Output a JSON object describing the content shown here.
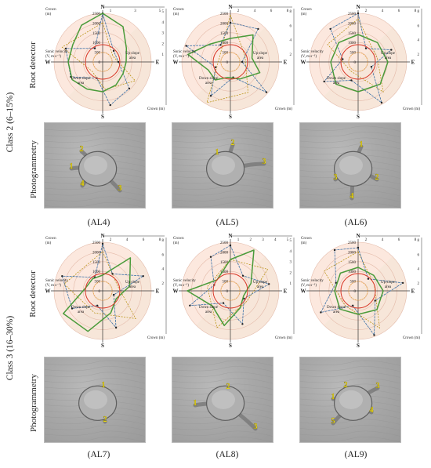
{
  "row_labels": {
    "root_detector": "Root detector",
    "photogrammetry": "Photogrammetry",
    "class2": "Class 2 (6–15%)",
    "class3": "Class 3 (16–30%)"
  },
  "chart_labels": {
    "crown_label": "Crown",
    "crown_unit": "(m)",
    "crown_axis": "Crown (m)",
    "sonic_line1": "Sonic velocity",
    "sonic_line2": "(V, m s⁻¹)",
    "down_line1": "Down slope",
    "down_line2": "area",
    "up_line1": "Up slope",
    "up_line2": "area",
    "north": "N",
    "south": "S",
    "east": "E",
    "west": "W"
  },
  "radial_ticks": [
    "2500",
    "2000",
    "1500",
    "1000",
    "500",
    "0"
  ],
  "panels": [
    {
      "id": "AL4",
      "caption": "(AL4)",
      "crown_ticks": [
        "1",
        "3",
        "5"
      ],
      "right_ticks": [
        "5",
        "4",
        "3",
        "2",
        "1"
      ],
      "root_labels": [
        "1",
        "2",
        "3",
        "4"
      ]
    },
    {
      "id": "AL5",
      "caption": "(AL5)",
      "crown_ticks": [
        "2",
        "4",
        "6",
        "8"
      ],
      "right_ticks": [
        "8",
        "6",
        "4",
        "2"
      ],
      "root_labels": [
        "1",
        "2",
        "3"
      ]
    },
    {
      "id": "AL6",
      "caption": "(AL6)",
      "crown_ticks": [
        "2",
        "4",
        "6",
        "8"
      ],
      "right_ticks": [
        "8",
        "6",
        "4",
        "2"
      ],
      "root_labels": [
        "1",
        "2",
        "3",
        "4"
      ]
    },
    {
      "id": "AL7",
      "caption": "(AL7)",
      "crown_ticks": [
        "2",
        "4",
        "6",
        "8"
      ],
      "right_ticks": [
        "8",
        "6",
        "4",
        "2"
      ],
      "root_labels": [
        "1",
        "2"
      ]
    },
    {
      "id": "AL8",
      "caption": "(AL8)",
      "crown_ticks": [
        "1",
        "2",
        "3",
        "4",
        "5"
      ],
      "right_ticks": [
        "5",
        "4",
        "3",
        "2",
        "1"
      ],
      "root_labels": [
        "1",
        "2",
        "3"
      ]
    },
    {
      "id": "AL9",
      "caption": "(AL9)",
      "crown_ticks": [
        "2",
        "4",
        "6",
        "8"
      ],
      "right_ticks": [
        "8",
        "6",
        "4",
        "2"
      ],
      "root_labels": [
        "1",
        "2",
        "3",
        "4",
        "5"
      ]
    }
  ]
}
